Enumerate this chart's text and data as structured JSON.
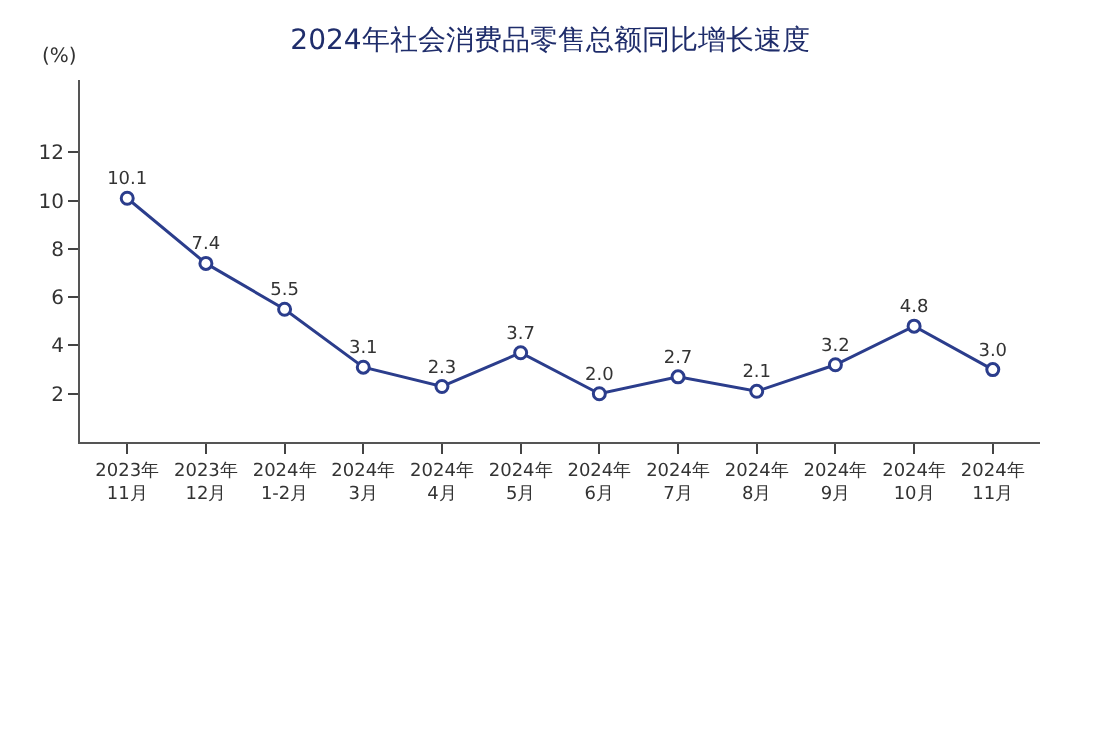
{
  "chart_data": {
    "type": "line",
    "title": "2024年社会消费品零售总额同比增长速度",
    "ylabel": "(%)",
    "categories": [
      "2023年\n11月",
      "2023年\n12月",
      "2024年\n1-2月",
      "2024年\n3月",
      "2024年\n4月",
      "2024年\n5月",
      "2024年\n6月",
      "2024年\n7月",
      "2024年\n8月",
      "2024年\n9月",
      "2024年\n10月",
      "2024年\n11月"
    ],
    "series": [
      {
        "color": "#2b3d8c",
        "values": [
          10.1,
          7.4,
          5.5,
          3.1,
          2.3,
          3.7,
          2.0,
          2.7,
          2.1,
          3.2,
          4.8,
          3.0
        ],
        "value_labels": [
          "10.1",
          "7.4",
          "5.5",
          "3.1",
          "2.3",
          "3.7",
          "2.0",
          "2.7",
          "2.1",
          "3.2",
          "4.8",
          "3.0"
        ]
      }
    ],
    "ylim": [
      0,
      15
    ],
    "yticks": [
      2,
      4,
      6,
      8,
      10,
      12
    ],
    "marker": "circle"
  }
}
